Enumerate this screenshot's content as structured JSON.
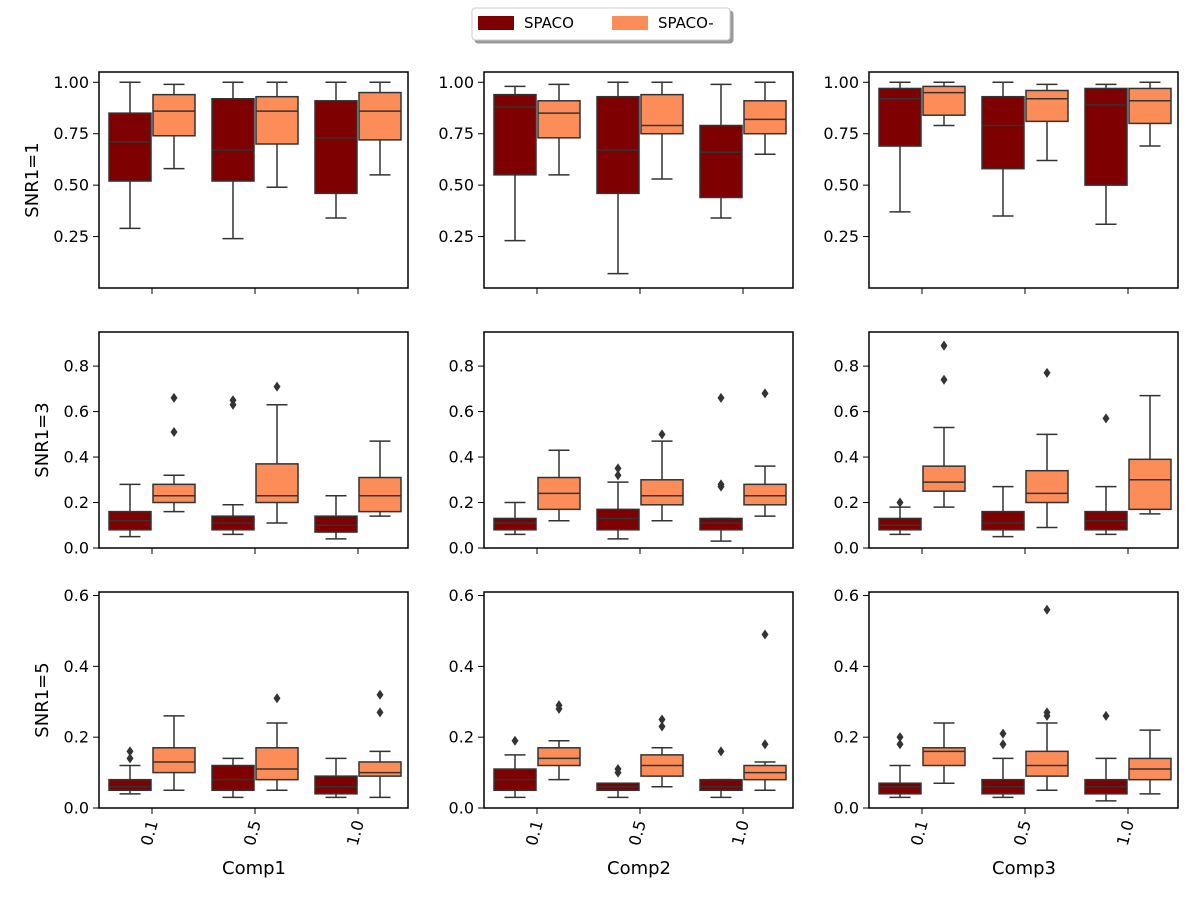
{
  "legend": {
    "items": [
      {
        "label": "SPACO",
        "color": "#7f0000"
      },
      {
        "label": "SPACO-",
        "color": "#fc8d59"
      }
    ]
  },
  "colors": {
    "outline": "#333333",
    "flier": "#333333"
  },
  "chart_data": {
    "type": "box",
    "layout": "3x3 grid",
    "series_names": [
      "SPACO",
      "SPACO-"
    ],
    "columns": [
      {
        "xlabel": "Comp1",
        "categories": [
          "0.1",
          "0.5",
          "1.0"
        ]
      },
      {
        "xlabel": "Comp2",
        "categories": [
          "0.1",
          "0.5",
          "1.0"
        ]
      },
      {
        "xlabel": "Comp3",
        "categories": [
          "0.1",
          "0.5",
          "1.0"
        ]
      }
    ],
    "rows": [
      {
        "ylabel": "SNR1=1",
        "ylim": [
          0.0,
          1.05
        ],
        "yticks": [
          "0.25",
          "0.50",
          "0.75",
          "1.00"
        ]
      },
      {
        "ylabel": "SNR1=3",
        "ylim": [
          0.0,
          0.95
        ],
        "yticks": [
          "0.0",
          "0.2",
          "0.4",
          "0.6",
          "0.8"
        ]
      },
      {
        "ylabel": "SNR1=5",
        "ylim": [
          0.0,
          0.61
        ],
        "yticks": [
          "0.0",
          "0.2",
          "0.4",
          "0.6"
        ]
      }
    ],
    "panels": [
      [
        [
          {
            "spaco": {
              "min": 0.29,
              "q1": 0.52,
              "med": 0.71,
              "q3": 0.85,
              "max": 1.0,
              "fliers": []
            },
            "spaco_minus": {
              "min": 0.58,
              "q1": 0.74,
              "med": 0.86,
              "q3": 0.94,
              "max": 0.99,
              "fliers": []
            }
          },
          {
            "spaco": {
              "min": 0.24,
              "q1": 0.52,
              "med": 0.67,
              "q3": 0.92,
              "max": 1.0,
              "fliers": []
            },
            "spaco_minus": {
              "min": 0.49,
              "q1": 0.7,
              "med": 0.86,
              "q3": 0.93,
              "max": 1.0,
              "fliers": []
            }
          },
          {
            "spaco": {
              "min": 0.34,
              "q1": 0.46,
              "med": 0.73,
              "q3": 0.91,
              "max": 1.0,
              "fliers": []
            },
            "spaco_minus": {
              "min": 0.55,
              "q1": 0.72,
              "med": 0.86,
              "q3": 0.95,
              "max": 1.0,
              "fliers": []
            }
          }
        ],
        [
          {
            "spaco": {
              "min": 0.23,
              "q1": 0.55,
              "med": 0.88,
              "q3": 0.94,
              "max": 0.98,
              "fliers": []
            },
            "spaco_minus": {
              "min": 0.55,
              "q1": 0.73,
              "med": 0.85,
              "q3": 0.91,
              "max": 0.99,
              "fliers": []
            }
          },
          {
            "spaco": {
              "min": 0.07,
              "q1": 0.46,
              "med": 0.67,
              "q3": 0.93,
              "max": 1.0,
              "fliers": []
            },
            "spaco_minus": {
              "min": 0.53,
              "q1": 0.75,
              "med": 0.79,
              "q3": 0.94,
              "max": 1.0,
              "fliers": []
            }
          },
          {
            "spaco": {
              "min": 0.34,
              "q1": 0.44,
              "med": 0.66,
              "q3": 0.79,
              "max": 0.99,
              "fliers": []
            },
            "spaco_minus": {
              "min": 0.65,
              "q1": 0.75,
              "med": 0.82,
              "q3": 0.91,
              "max": 1.0,
              "fliers": []
            }
          }
        ],
        [
          {
            "spaco": {
              "min": 0.37,
              "q1": 0.69,
              "med": 0.92,
              "q3": 0.97,
              "max": 1.0,
              "fliers": []
            },
            "spaco_minus": {
              "min": 0.79,
              "q1": 0.84,
              "med": 0.95,
              "q3": 0.98,
              "max": 1.0,
              "fliers": []
            }
          },
          {
            "spaco": {
              "min": 0.35,
              "q1": 0.58,
              "med": 0.79,
              "q3": 0.93,
              "max": 1.0,
              "fliers": []
            },
            "spaco_minus": {
              "min": 0.62,
              "q1": 0.81,
              "med": 0.92,
              "q3": 0.96,
              "max": 0.99,
              "fliers": []
            }
          },
          {
            "spaco": {
              "min": 0.31,
              "q1": 0.5,
              "med": 0.89,
              "q3": 0.97,
              "max": 0.99,
              "fliers": []
            },
            "spaco_minus": {
              "min": 0.69,
              "q1": 0.8,
              "med": 0.91,
              "q3": 0.97,
              "max": 1.0,
              "fliers": []
            }
          }
        ]
      ],
      [
        [
          {
            "spaco": {
              "min": 0.05,
              "q1": 0.08,
              "med": 0.12,
              "q3": 0.16,
              "max": 0.28,
              "fliers": []
            },
            "spaco_minus": {
              "min": 0.16,
              "q1": 0.2,
              "med": 0.23,
              "q3": 0.28,
              "max": 0.32,
              "fliers": [
                0.51,
                0.66
              ]
            }
          },
          {
            "spaco": {
              "min": 0.06,
              "q1": 0.08,
              "med": 0.11,
              "q3": 0.14,
              "max": 0.19,
              "fliers": [
                0.63,
                0.65
              ]
            },
            "spaco_minus": {
              "min": 0.11,
              "q1": 0.2,
              "med": 0.23,
              "q3": 0.37,
              "max": 0.63,
              "fliers": [
                0.71
              ]
            }
          },
          {
            "spaco": {
              "min": 0.04,
              "q1": 0.07,
              "med": 0.1,
              "q3": 0.14,
              "max": 0.23,
              "fliers": []
            },
            "spaco_minus": {
              "min": 0.14,
              "q1": 0.16,
              "med": 0.23,
              "q3": 0.31,
              "max": 0.47,
              "fliers": []
            }
          }
        ],
        [
          {
            "spaco": {
              "min": 0.06,
              "q1": 0.08,
              "med": 0.11,
              "q3": 0.13,
              "max": 0.2,
              "fliers": []
            },
            "spaco_minus": {
              "min": 0.12,
              "q1": 0.17,
              "med": 0.24,
              "q3": 0.31,
              "max": 0.43,
              "fliers": []
            }
          },
          {
            "spaco": {
              "min": 0.04,
              "q1": 0.08,
              "med": 0.13,
              "q3": 0.17,
              "max": 0.29,
              "fliers": [
                0.32,
                0.35
              ]
            },
            "spaco_minus": {
              "min": 0.12,
              "q1": 0.19,
              "med": 0.23,
              "q3": 0.3,
              "max": 0.47,
              "fliers": [
                0.5
              ]
            }
          },
          {
            "spaco": {
              "min": 0.03,
              "q1": 0.08,
              "med": 0.11,
              "q3": 0.13,
              "max": 0.13,
              "fliers": [
                0.27,
                0.28,
                0.66
              ]
            },
            "spaco_minus": {
              "min": 0.14,
              "q1": 0.19,
              "med": 0.23,
              "q3": 0.28,
              "max": 0.36,
              "fliers": [
                0.68
              ]
            }
          }
        ],
        [
          {
            "spaco": {
              "min": 0.06,
              "q1": 0.08,
              "med": 0.1,
              "q3": 0.13,
              "max": 0.18,
              "fliers": [
                0.2
              ]
            },
            "spaco_minus": {
              "min": 0.18,
              "q1": 0.25,
              "med": 0.29,
              "q3": 0.36,
              "max": 0.53,
              "fliers": [
                0.74,
                0.89
              ]
            }
          },
          {
            "spaco": {
              "min": 0.05,
              "q1": 0.08,
              "med": 0.11,
              "q3": 0.16,
              "max": 0.27,
              "fliers": []
            },
            "spaco_minus": {
              "min": 0.09,
              "q1": 0.2,
              "med": 0.24,
              "q3": 0.34,
              "max": 0.5,
              "fliers": [
                0.77
              ]
            }
          },
          {
            "spaco": {
              "min": 0.06,
              "q1": 0.08,
              "med": 0.12,
              "q3": 0.16,
              "max": 0.27,
              "fliers": [
                0.57
              ]
            },
            "spaco_minus": {
              "min": 0.15,
              "q1": 0.17,
              "med": 0.3,
              "q3": 0.39,
              "max": 0.67,
              "fliers": []
            }
          }
        ]
      ],
      [
        [
          {
            "spaco": {
              "min": 0.04,
              "q1": 0.05,
              "med": 0.06,
              "q3": 0.08,
              "max": 0.12,
              "fliers": [
                0.14,
                0.16
              ]
            },
            "spaco_minus": {
              "min": 0.05,
              "q1": 0.1,
              "med": 0.13,
              "q3": 0.17,
              "max": 0.26,
              "fliers": []
            }
          },
          {
            "spaco": {
              "min": 0.03,
              "q1": 0.05,
              "med": 0.08,
              "q3": 0.12,
              "max": 0.14,
              "fliers": []
            },
            "spaco_minus": {
              "min": 0.05,
              "q1": 0.08,
              "med": 0.11,
              "q3": 0.17,
              "max": 0.24,
              "fliers": [
                0.31
              ]
            }
          },
          {
            "spaco": {
              "min": 0.03,
              "q1": 0.04,
              "med": 0.06,
              "q3": 0.09,
              "max": 0.14,
              "fliers": []
            },
            "spaco_minus": {
              "min": 0.03,
              "q1": 0.09,
              "med": 0.1,
              "q3": 0.13,
              "max": 0.16,
              "fliers": [
                0.27,
                0.32
              ]
            }
          }
        ],
        [
          {
            "spaco": {
              "min": 0.03,
              "q1": 0.05,
              "med": 0.08,
              "q3": 0.11,
              "max": 0.15,
              "fliers": [
                0.19
              ]
            },
            "spaco_minus": {
              "min": 0.08,
              "q1": 0.12,
              "med": 0.14,
              "q3": 0.17,
              "max": 0.19,
              "fliers": [
                0.28,
                0.29
              ]
            }
          },
          {
            "spaco": {
              "min": 0.03,
              "q1": 0.05,
              "med": 0.06,
              "q3": 0.07,
              "max": 0.07,
              "fliers": [
                0.1,
                0.11
              ]
            },
            "spaco_minus": {
              "min": 0.06,
              "q1": 0.09,
              "med": 0.12,
              "q3": 0.15,
              "max": 0.17,
              "fliers": [
                0.23,
                0.25
              ]
            }
          },
          {
            "spaco": {
              "min": 0.03,
              "q1": 0.05,
              "med": 0.06,
              "q3": 0.08,
              "max": 0.08,
              "fliers": [
                0.16
              ]
            },
            "spaco_minus": {
              "min": 0.05,
              "q1": 0.08,
              "med": 0.1,
              "q3": 0.12,
              "max": 0.13,
              "fliers": [
                0.18,
                0.49
              ]
            }
          }
        ],
        [
          {
            "spaco": {
              "min": 0.03,
              "q1": 0.04,
              "med": 0.06,
              "q3": 0.07,
              "max": 0.12,
              "fliers": [
                0.18,
                0.2
              ]
            },
            "spaco_minus": {
              "min": 0.07,
              "q1": 0.12,
              "med": 0.16,
              "q3": 0.17,
              "max": 0.24,
              "fliers": []
            }
          },
          {
            "spaco": {
              "min": 0.03,
              "q1": 0.04,
              "med": 0.06,
              "q3": 0.08,
              "max": 0.14,
              "fliers": [
                0.18,
                0.21
              ]
            },
            "spaco_minus": {
              "min": 0.05,
              "q1": 0.09,
              "med": 0.12,
              "q3": 0.16,
              "max": 0.24,
              "fliers": [
                0.26,
                0.27,
                0.56
              ]
            }
          },
          {
            "spaco": {
              "min": 0.02,
              "q1": 0.04,
              "med": 0.06,
              "q3": 0.08,
              "max": 0.14,
              "fliers": [
                0.26
              ]
            },
            "spaco_minus": {
              "min": 0.04,
              "q1": 0.08,
              "med": 0.11,
              "q3": 0.14,
              "max": 0.22,
              "fliers": []
            }
          }
        ]
      ]
    ]
  }
}
